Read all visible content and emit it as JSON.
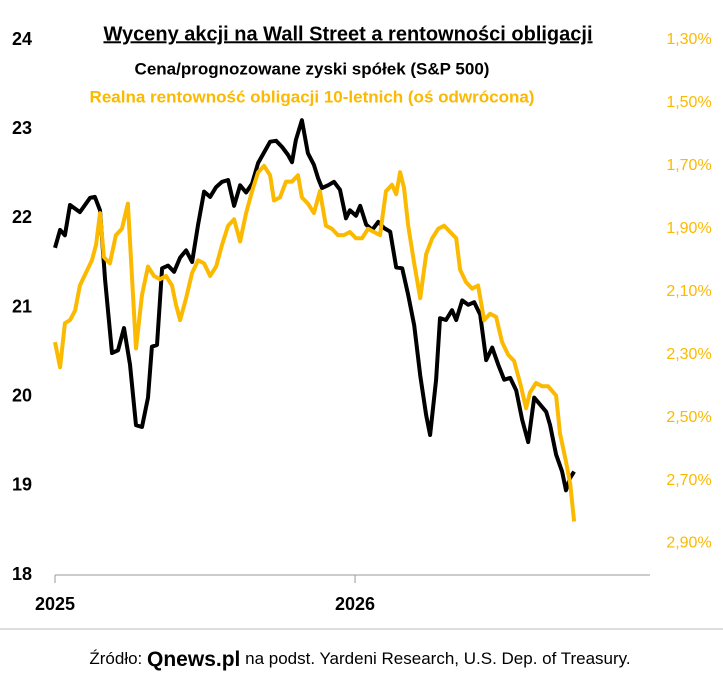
{
  "chart_data": {
    "type": "line",
    "title": "Wyceny akcji na Wall Street a rentowności obligacji",
    "xlim": [
      2025,
      2026.983
    ],
    "xticks": [
      2025,
      2026
    ],
    "ylim": [
      18,
      24
    ],
    "yticks": [
      18,
      19,
      20,
      21,
      22,
      23,
      24
    ],
    "y2lim": [
      3.0,
      1.3
    ],
    "y2ticks": [
      {
        "value": 1.3,
        "label": "1,30%"
      },
      {
        "value": 1.5,
        "label": "1,50%"
      },
      {
        "value": 1.7,
        "label": "1,70%"
      },
      {
        "value": 1.9,
        "label": "1,90%"
      },
      {
        "value": 2.1,
        "label": "2,10%"
      },
      {
        "value": 2.3,
        "label": "2,30%"
      },
      {
        "value": 2.5,
        "label": "2,50%"
      },
      {
        "value": 2.7,
        "label": "2,70%"
      },
      {
        "value": 2.9,
        "label": "2,90%"
      }
    ],
    "y2_inverted": true,
    "series": [
      {
        "name": "Cena/prognozowane zyski spółek (S&P 500)",
        "color": "#000000",
        "x": [
          2025,
          2025.017,
          2025.033,
          2025.05,
          2025.083,
          2025.117,
          2025.133,
          2025.15,
          2025.167,
          2025.19,
          2025.21,
          2025.23,
          2025.25,
          2025.27,
          2025.29,
          2025.31,
          2025.323,
          2025.34,
          2025.357,
          2025.377,
          2025.397,
          2025.417,
          2025.437,
          2025.457,
          2025.477,
          2025.497,
          2025.517,
          2025.537,
          2025.557,
          2025.577,
          2025.597,
          2025.617,
          2025.637,
          2025.657,
          2025.677,
          2025.697,
          2025.717,
          2025.737,
          2025.757,
          2025.777,
          2025.79,
          2025.803,
          2025.823,
          2025.843,
          2025.863,
          2025.877,
          2025.89,
          2025.91,
          2025.93,
          2025.95,
          2025.97,
          2025.983,
          2026.003,
          2026.017,
          2026.037,
          2026.057,
          2026.077,
          2026.097,
          2026.117,
          2026.137,
          2026.157,
          2026.177,
          2026.197,
          2026.217,
          2026.237,
          2026.25,
          2026.27,
          2026.283,
          2026.303,
          2026.323,
          2026.337,
          2026.357,
          2026.377,
          2026.397,
          2026.417,
          2026.437,
          2026.457,
          2026.477,
          2026.497,
          2026.517,
          2026.537,
          2026.557,
          2026.577,
          2026.597,
          2026.617,
          2026.637,
          2026.65,
          2026.67,
          2026.69,
          2026.703,
          2026.717,
          2026.73
        ],
        "values": [
          21.67,
          21.87,
          21.81,
          22.15,
          22.07,
          22.23,
          22.24,
          22.09,
          21.31,
          20.49,
          20.52,
          20.77,
          20.36,
          19.68,
          19.66,
          19.99,
          20.56,
          20.58,
          21.44,
          21.47,
          21.4,
          21.56,
          21.64,
          21.51,
          21.93,
          22.3,
          22.24,
          22.35,
          22.41,
          22.43,
          22.14,
          22.37,
          22.29,
          22.39,
          22.62,
          22.74,
          22.86,
          22.87,
          22.8,
          22.71,
          22.63,
          22.88,
          23.1,
          22.73,
          22.6,
          22.45,
          22.34,
          22.37,
          22.41,
          22.32,
          22.0,
          22.09,
          22.03,
          22.14,
          21.93,
          21.87,
          21.96,
          21.89,
          21.85,
          21.45,
          21.44,
          21.14,
          20.8,
          20.24,
          19.79,
          19.57,
          20.19,
          20.88,
          20.86,
          20.97,
          20.86,
          21.08,
          21.03,
          21.06,
          20.92,
          20.41,
          20.55,
          20.36,
          20.19,
          20.21,
          20.07,
          19.74,
          19.49,
          19.99,
          19.91,
          19.83,
          19.68,
          19.35,
          19.16,
          18.95,
          19.09,
          19.16
        ]
      },
      {
        "name": "Realna rentowność obligacji 10-letnich (oś odwrócona)",
        "color": "#fbb900",
        "axis": "y2",
        "x": [
          2025,
          2025.017,
          2025.033,
          2025.05,
          2025.067,
          2025.083,
          2025.103,
          2025.123,
          2025.137,
          2025.15,
          2025.163,
          2025.183,
          2025.203,
          2025.223,
          2025.243,
          2025.257,
          2025.27,
          2025.29,
          2025.31,
          2025.33,
          2025.35,
          2025.37,
          2025.39,
          2025.403,
          2025.417,
          2025.437,
          2025.457,
          2025.477,
          2025.497,
          2025.517,
          2025.537,
          2025.557,
          2025.577,
          2025.597,
          2025.617,
          2025.637,
          2025.657,
          2025.677,
          2025.697,
          2025.717,
          2025.73,
          2025.75,
          2025.77,
          2025.79,
          2025.81,
          2025.823,
          2025.843,
          2025.863,
          2025.883,
          2025.903,
          2025.923,
          2025.943,
          2025.963,
          2025.983,
          2026.003,
          2026.023,
          2026.043,
          2026.063,
          2026.083,
          2026.103,
          2026.123,
          2026.137,
          2026.15,
          2026.163,
          2026.177,
          2026.197,
          2026.217,
          2026.237,
          2026.257,
          2026.277,
          2026.297,
          2026.317,
          2026.337,
          2026.35,
          2026.37,
          2026.39,
          2026.41,
          2026.43,
          2026.45,
          2026.47,
          2026.49,
          2026.51,
          2026.53,
          2026.55,
          2026.57,
          2026.583,
          2026.603,
          2026.623,
          2026.643,
          2026.67,
          2026.683,
          2026.703,
          2026.717,
          2026.73
        ],
        "values": [
          2.26,
          2.34,
          2.2,
          2.19,
          2.16,
          2.08,
          2.04,
          2.0,
          1.95,
          1.85,
          1.99,
          2.01,
          1.92,
          1.9,
          1.82,
          2.06,
          2.28,
          2.11,
          2.02,
          2.05,
          2.06,
          2.05,
          2.08,
          2.14,
          2.19,
          2.12,
          2.04,
          2.0,
          2.01,
          2.05,
          2.02,
          1.95,
          1.89,
          1.87,
          1.94,
          1.85,
          1.78,
          1.72,
          1.7,
          1.73,
          1.81,
          1.8,
          1.75,
          1.75,
          1.73,
          1.8,
          1.82,
          1.85,
          1.78,
          1.89,
          1.9,
          1.92,
          1.92,
          1.91,
          1.93,
          1.93,
          1.9,
          1.91,
          1.92,
          1.78,
          1.76,
          1.79,
          1.72,
          1.77,
          1.89,
          2.01,
          2.12,
          1.98,
          1.93,
          1.9,
          1.89,
          1.91,
          1.93,
          2.03,
          2.07,
          2.09,
          2.08,
          2.19,
          2.17,
          2.18,
          2.26,
          2.3,
          2.32,
          2.39,
          2.47,
          2.42,
          2.39,
          2.4,
          2.4,
          2.43,
          2.55,
          2.64,
          2.71,
          2.83
        ]
      }
    ]
  },
  "footer": {
    "prefix": "Źródło:",
    "brand": "Qnews.pl",
    "text": "na podst. Yardeni Research, U.S. Dep. of Treasury."
  }
}
